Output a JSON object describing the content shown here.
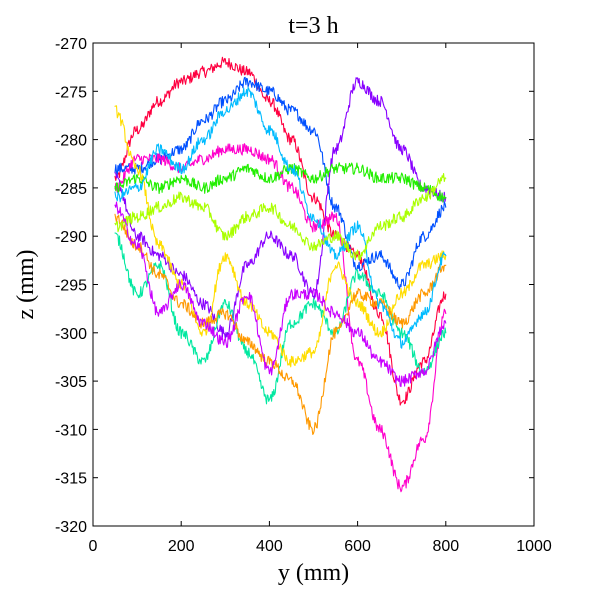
{
  "chart_data": {
    "type": "line",
    "title": "t=3 h",
    "xlabel": "y (mm)",
    "ylabel": "z (mm)",
    "xlim": [
      0,
      1000
    ],
    "ylim": [
      -320,
      -270
    ],
    "xticks": [
      0,
      200,
      400,
      600,
      800,
      1000
    ],
    "yticks": [
      -270,
      -275,
      -280,
      -285,
      -290,
      -295,
      -300,
      -305,
      -310,
      -315,
      -320
    ],
    "grid": false,
    "legend": "none",
    "series": [
      {
        "color": "#ff0040",
        "x": [
          50,
          100,
          150,
          200,
          250,
          300,
          350,
          400,
          450,
          500,
          550,
          600,
          650,
          700,
          750,
          800
        ],
        "y": [
          -284,
          -279,
          -276,
          -274,
          -273,
          -272,
          -273,
          -276,
          -280,
          -286,
          -290,
          -292,
          -298,
          -307,
          -303,
          -296
        ]
      },
      {
        "color": "#0050ff",
        "x": [
          50,
          100,
          150,
          200,
          250,
          300,
          350,
          400,
          450,
          500,
          550,
          600,
          650,
          700,
          750,
          800
        ],
        "y": [
          -283,
          -283,
          -282,
          -281,
          -278,
          -276,
          -274,
          -275,
          -277,
          -279,
          -287,
          -293,
          -292,
          -295,
          -290,
          -287
        ]
      },
      {
        "color": "#8800ff",
        "x": [
          50,
          100,
          150,
          200,
          250,
          300,
          350,
          400,
          450,
          500,
          550,
          600,
          650,
          700,
          750,
          800
        ],
        "y": [
          -284,
          -290,
          -292,
          -294,
          -297,
          -300,
          -293,
          -290,
          -292,
          -296,
          -281,
          -274,
          -276,
          -281,
          -285,
          -286
        ]
      },
      {
        "color": "#ff00cc",
        "x": [
          50,
          100,
          150,
          200,
          250,
          300,
          350,
          400,
          450,
          500,
          550,
          600,
          650,
          700,
          750,
          800
        ],
        "y": [
          -285,
          -282,
          -282,
          -283,
          -282,
          -281,
          -281,
          -282,
          -285,
          -289,
          -288,
          -303,
          -310,
          -316,
          -311,
          -298
        ]
      },
      {
        "color": "#22ee00",
        "x": [
          50,
          100,
          150,
          200,
          250,
          300,
          350,
          400,
          450,
          500,
          550,
          600,
          650,
          700,
          750,
          800
        ],
        "y": [
          -285,
          -284,
          -285,
          -284,
          -285,
          -284,
          -283,
          -284,
          -283,
          -284,
          -283,
          -283,
          -284,
          -284,
          -285,
          -286
        ]
      },
      {
        "color": "#00e8a0",
        "x": [
          50,
          100,
          150,
          200,
          250,
          300,
          350,
          400,
          450,
          500,
          550,
          600,
          650,
          700,
          750,
          800
        ],
        "y": [
          -290,
          -296,
          -293,
          -300,
          -303,
          -297,
          -302,
          -307,
          -299,
          -297,
          -300,
          -294,
          -296,
          -300,
          -304,
          -300
        ]
      },
      {
        "color": "#ffdd00",
        "x": [
          50,
          100,
          150,
          200,
          250,
          300,
          350,
          400,
          450,
          500,
          550,
          600,
          650,
          700,
          750,
          800
        ],
        "y": [
          -277,
          -283,
          -291,
          -295,
          -300,
          -292,
          -297,
          -300,
          -303,
          -302,
          -293,
          -297,
          -300,
          -296,
          -293,
          -292
        ]
      },
      {
        "color": "#ff9900",
        "x": [
          50,
          100,
          150,
          200,
          250,
          300,
          350,
          400,
          450,
          500,
          550,
          600,
          650,
          700,
          750,
          800
        ],
        "y": [
          -288,
          -291,
          -294,
          -297,
          -299,
          -298,
          -301,
          -303,
          -305,
          -310,
          -300,
          -296,
          -297,
          -299,
          -296,
          -293
        ]
      },
      {
        "color": "#00bbff",
        "x": [
          50,
          100,
          150,
          200,
          250,
          300,
          350,
          400,
          450,
          500,
          550,
          600,
          650,
          700,
          750,
          800
        ],
        "y": [
          -286,
          -285,
          -281,
          -283,
          -280,
          -277,
          -275,
          -279,
          -283,
          -288,
          -292,
          -289,
          -297,
          -301,
          -298,
          -292
        ]
      },
      {
        "color": "#aaff00",
        "x": [
          50,
          100,
          150,
          200,
          250,
          300,
          350,
          400,
          450,
          500,
          550,
          600,
          650,
          700,
          750,
          800
        ],
        "y": [
          -289,
          -288,
          -287,
          -286,
          -287,
          -290,
          -288,
          -287,
          -289,
          -291,
          -290,
          -292,
          -289,
          -288,
          -286,
          -284
        ]
      },
      {
        "color": "#c800ff",
        "x": [
          50,
          100,
          150,
          200,
          250,
          300,
          350,
          400,
          450,
          500,
          550,
          600,
          650,
          700,
          750,
          800
        ],
        "y": [
          -287,
          -291,
          -298,
          -295,
          -299,
          -301,
          -296,
          -304,
          -296,
          -296,
          -298,
          -300,
          -303,
          -305,
          -304,
          -299
        ]
      }
    ]
  }
}
